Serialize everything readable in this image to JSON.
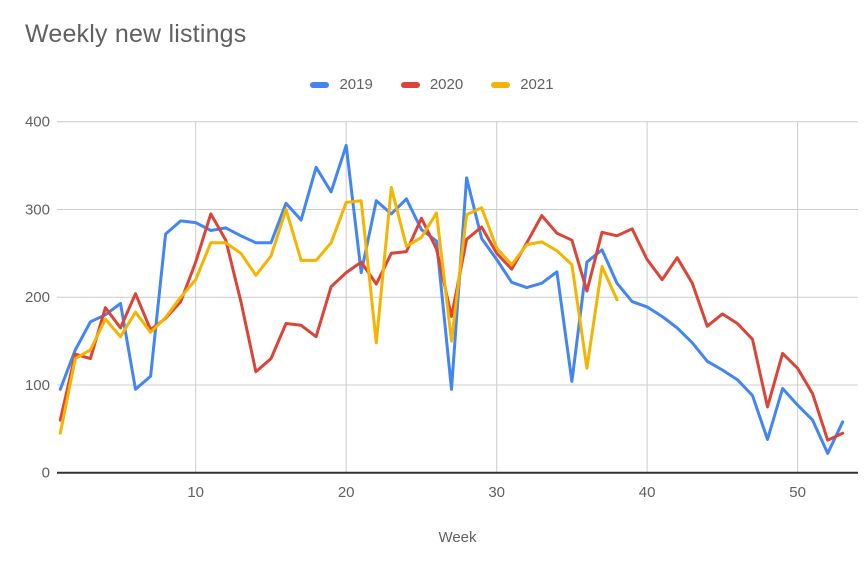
{
  "title": "Weekly new listings",
  "axes": {
    "x_label": "Week",
    "x_ticks": [
      10,
      20,
      30,
      40,
      50
    ],
    "y_ticks": [
      0,
      100,
      200,
      300,
      400
    ]
  },
  "chart_data": {
    "type": "line",
    "title": "Weekly new listings",
    "xlabel": "Week",
    "ylabel": "",
    "ylim": [
      0,
      400
    ],
    "xlim": [
      1,
      53
    ],
    "grid": true,
    "legend_position": "top",
    "x": [
      1,
      2,
      3,
      4,
      5,
      6,
      7,
      8,
      9,
      10,
      11,
      12,
      13,
      14,
      15,
      16,
      17,
      18,
      19,
      20,
      21,
      22,
      23,
      24,
      25,
      26,
      27,
      28,
      29,
      30,
      31,
      32,
      33,
      34,
      35,
      36,
      37,
      38,
      39,
      40,
      41,
      42,
      43,
      44,
      45,
      46,
      47,
      48,
      49,
      50,
      51,
      52,
      53
    ],
    "series": [
      {
        "name": "2019",
        "color": "#4285F4",
        "values": [
          95,
          140,
          172,
          180,
          193,
          95,
          110,
          272,
          287,
          285,
          276,
          279,
          270,
          262,
          262,
          307,
          288,
          348,
          320,
          373,
          228,
          310,
          295,
          312,
          277,
          264,
          95,
          336,
          267,
          243,
          217,
          211,
          216,
          229,
          104,
          240,
          254,
          216,
          195,
          189,
          178,
          165,
          148,
          127,
          117,
          106,
          88,
          38,
          96,
          77,
          60,
          22,
          58
        ]
      },
      {
        "name": "2020",
        "color": "#DB4437",
        "values": [
          60,
          135,
          130,
          188,
          165,
          204,
          163,
          176,
          195,
          240,
          295,
          265,
          195,
          115,
          130,
          170,
          168,
          155,
          212,
          228,
          240,
          215,
          250,
          252,
          290,
          255,
          178,
          266,
          280,
          250,
          232,
          262,
          293,
          273,
          265,
          207,
          274,
          270,
          278,
          243,
          220,
          245,
          216,
          167,
          181,
          170,
          152,
          75,
          136,
          119,
          90,
          37,
          45
        ]
      },
      {
        "name": "2021",
        "color": "#F4B400",
        "values": [
          45,
          130,
          140,
          175,
          155,
          183,
          160,
          177,
          200,
          220,
          262,
          262,
          250,
          225,
          247,
          300,
          242,
          242,
          262,
          308,
          310,
          148,
          325,
          258,
          268,
          296,
          150,
          294,
          302,
          256,
          237,
          260,
          263,
          253,
          237,
          119,
          235,
          197
        ]
      }
    ]
  }
}
